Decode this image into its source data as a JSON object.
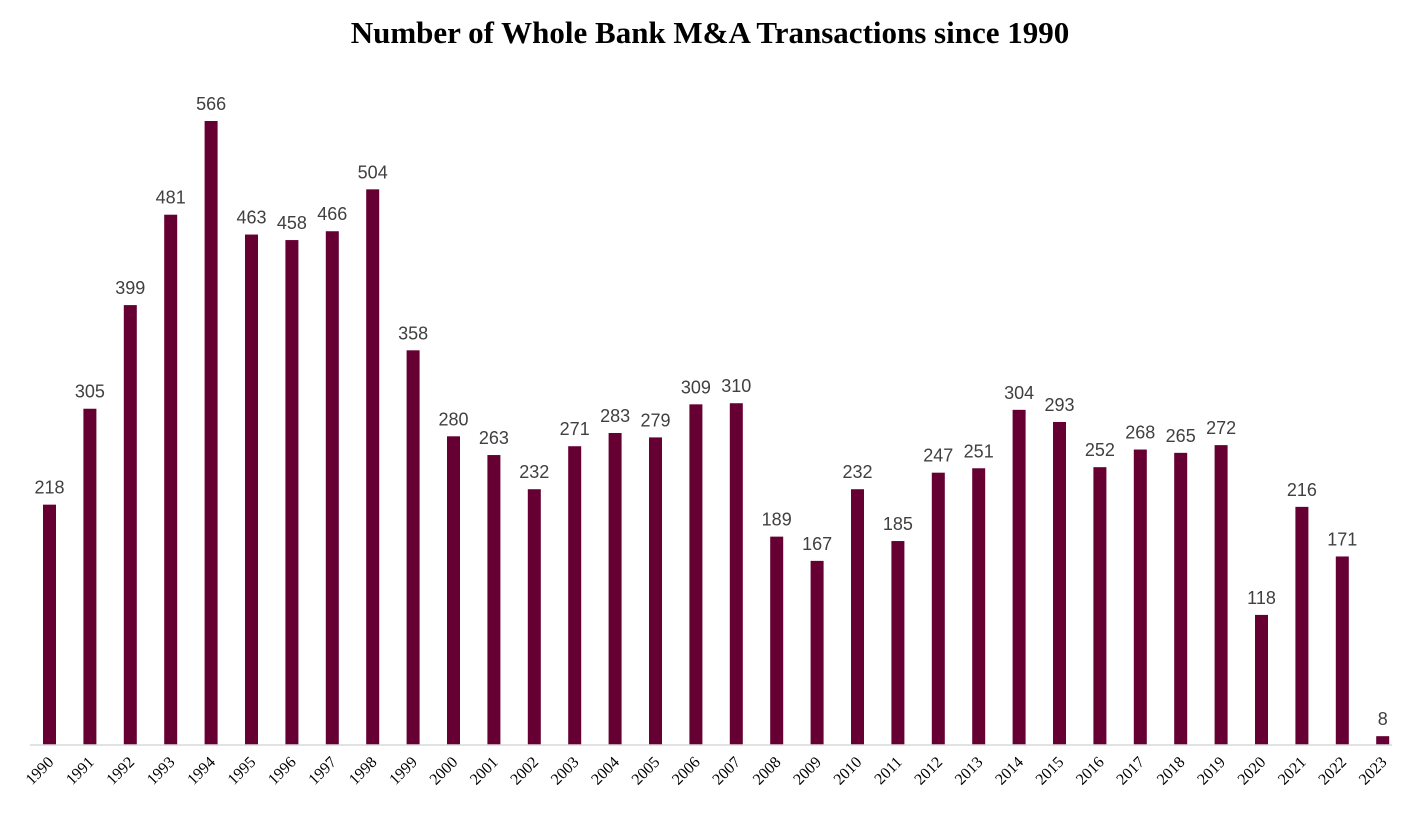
{
  "chart_data": {
    "type": "bar",
    "title": "Number of Whole Bank M&A Transactions since 1990",
    "xlabel": "",
    "ylabel": "",
    "categories": [
      "1990",
      "1991",
      "1992",
      "1993",
      "1994",
      "1995",
      "1996",
      "1997",
      "1998",
      "1999",
      "2000",
      "2001",
      "2002",
      "2003",
      "2004",
      "2005",
      "2006",
      "2007",
      "2008",
      "2009",
      "2010",
      "2011",
      "2012",
      "2013",
      "2014",
      "2015",
      "2016",
      "2017",
      "2018",
      "2019",
      "2020",
      "2021",
      "2022",
      "2023"
    ],
    "values": [
      218,
      305,
      399,
      481,
      566,
      463,
      458,
      466,
      504,
      358,
      280,
      263,
      232,
      271,
      283,
      279,
      309,
      310,
      189,
      167,
      232,
      185,
      247,
      251,
      304,
      293,
      252,
      268,
      265,
      272,
      118,
      216,
      171,
      8
    ],
    "ylim": [
      0,
      566
    ],
    "grid": false,
    "legend": "none",
    "data_labels": true,
    "colors": {
      "bar": "#660033",
      "axis": "#d9d9d9",
      "label": "#404040",
      "title": "#000000"
    }
  }
}
